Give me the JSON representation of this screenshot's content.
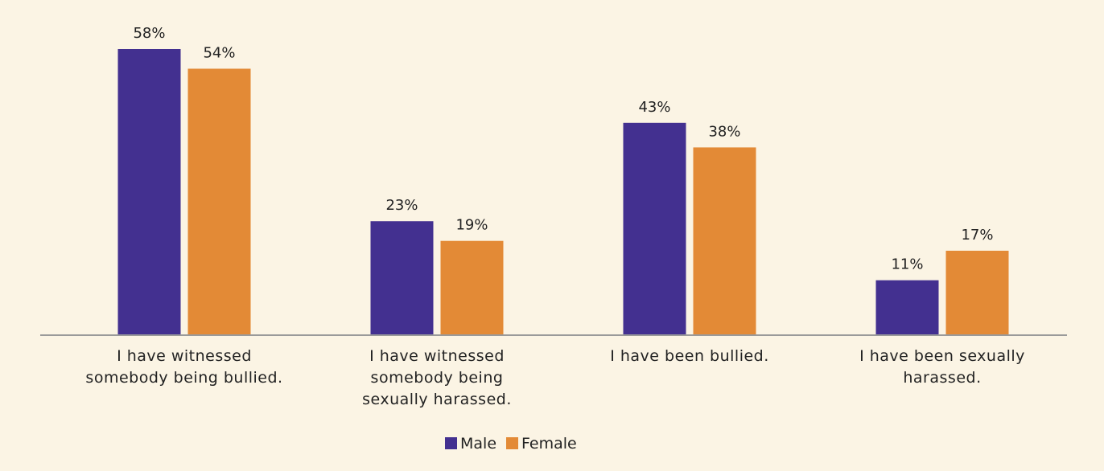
{
  "chart_data": {
    "type": "bar",
    "categories": [
      "I have witnessed somebody being bullied.",
      "I have witnessed somebody being sexually harassed.",
      "I have been bullied.",
      "I have been sexually harassed."
    ],
    "series": [
      {
        "name": "Male",
        "color": "#433090",
        "values": [
          58,
          23,
          43,
          11
        ],
        "value_labels": [
          "58%",
          "23%",
          "43%",
          "11%"
        ]
      },
      {
        "name": "Female",
        "color": "#e38a36",
        "values": [
          54,
          19,
          38,
          17
        ],
        "value_labels": [
          "54%",
          "19%",
          "38%",
          "17%"
        ]
      }
    ],
    "legend": "bottom"
  }
}
